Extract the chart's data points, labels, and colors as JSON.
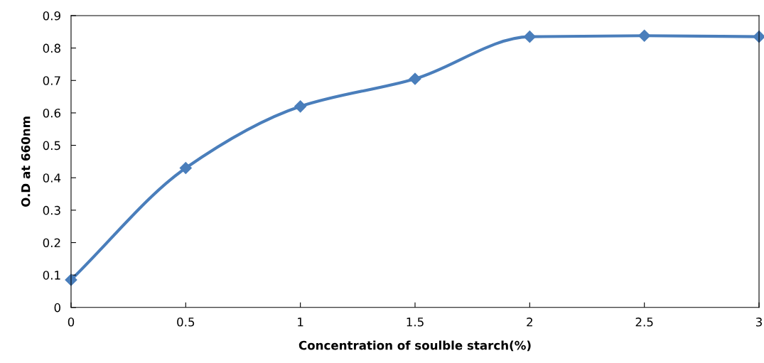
{
  "chart_data": {
    "type": "line",
    "xlabel": "Concentration of soulble starch(%)",
    "ylabel": "O.D at 660nm",
    "series": [
      {
        "color": "#4a7ebb",
        "x": [
          0,
          0.5,
          1,
          1.5,
          2,
          2.5,
          3
        ],
        "values": [
          0.085,
          0.43,
          0.62,
          0.705,
          0.835,
          0.838,
          0.835
        ]
      }
    ],
    "xlim": [
      0,
      3
    ],
    "xticks": [
      0,
      0.5,
      1,
      1.5,
      2,
      2.5,
      3
    ],
    "ylim": [
      0,
      0.9
    ],
    "yticks": [
      0,
      0.1,
      0.2,
      0.3,
      0.4,
      0.5,
      0.6,
      0.7,
      0.8,
      0.9
    ],
    "grid": false,
    "marker": "diamond",
    "line_style": "solid"
  }
}
